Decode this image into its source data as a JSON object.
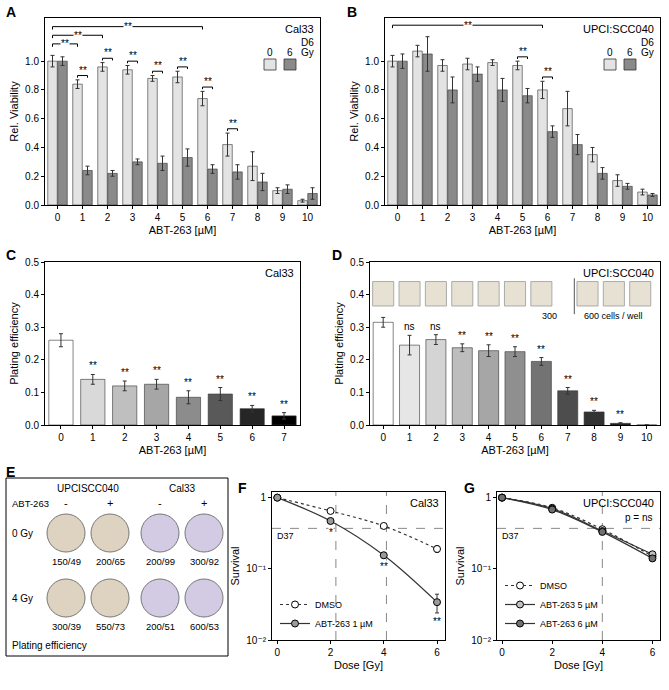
{
  "chart_data": [
    {
      "panel": "A",
      "type": "bar",
      "title": "Cal33",
      "subtitle": "D6",
      "x_label": "ABT-263 [µM]",
      "y_label": "Rel. Viability",
      "categories": [
        "0",
        "1",
        "2",
        "3",
        "4",
        "5",
        "6",
        "7",
        "8",
        "9",
        "10"
      ],
      "series": [
        {
          "name": "0",
          "color": "#e3e3e3",
          "values": [
            1.0,
            0.84,
            0.96,
            0.94,
            0.88,
            0.89,
            0.74,
            0.42,
            0.27,
            0.1,
            0.03
          ],
          "errors": [
            0.04,
            0.03,
            0.03,
            0.03,
            0.02,
            0.04,
            0.05,
            0.08,
            0.1,
            0.02,
            0.01
          ]
        },
        {
          "name": "6",
          "color": "#8a8a8a",
          "values": [
            1.0,
            0.24,
            0.22,
            0.3,
            0.29,
            0.33,
            0.25,
            0.23,
            0.16,
            0.11,
            0.08
          ],
          "errors": [
            0.03,
            0.03,
            0.02,
            0.02,
            0.05,
            0.06,
            0.03,
            0.05,
            0.06,
            0.03,
            0.04
          ]
        }
      ],
      "legend": "top right",
      "legend_title": "Gy",
      "grid": false,
      "ylim": [
        0,
        1.3
      ],
      "yticks": [
        {
          "value": 0,
          "label": "0.0"
        },
        0.2,
        0.4,
        0.6,
        0.8,
        {
          "value": 1,
          "label": "1.0"
        }
      ],
      "brackets": [
        {
          "from": "0",
          "to": "1",
          "label": "**"
        },
        {
          "from": "0",
          "to": "2",
          "label": "**"
        },
        {
          "from": "0",
          "to": "6",
          "label": "**"
        }
      ],
      "pair_marks": [
        {
          "category": "1",
          "label": "**"
        },
        {
          "category": "2",
          "label": "**"
        },
        {
          "category": "3",
          "label": "**"
        },
        {
          "category": "4",
          "label": "**"
        },
        {
          "category": "5",
          "label": "**"
        },
        {
          "category": "6",
          "label": "**"
        },
        {
          "category": "7",
          "label": "**"
        }
      ]
    },
    {
      "panel": "B",
      "type": "bar",
      "title": "UPCI:SCC040",
      "subtitle": "D6",
      "x_label": "ABT-263 [µM]",
      "y_label": "Rel. Viability",
      "categories": [
        "0",
        "1",
        "2",
        "3",
        "4",
        "5",
        "6",
        "7",
        "8",
        "9",
        "10"
      ],
      "series": [
        {
          "name": "0",
          "color": "#e3e3e3",
          "values": [
            1.0,
            1.07,
            0.97,
            0.98,
            0.99,
            0.97,
            0.8,
            0.67,
            0.35,
            0.17,
            0.09
          ],
          "errors": [
            0.04,
            0.04,
            0.04,
            0.04,
            0.02,
            0.03,
            0.06,
            0.12,
            0.05,
            0.04,
            0.02
          ]
        },
        {
          "name": "6",
          "color": "#8a8a8a",
          "values": [
            1.0,
            1.05,
            0.8,
            0.91,
            0.8,
            0.76,
            0.51,
            0.42,
            0.22,
            0.13,
            0.07
          ],
          "errors": [
            0.05,
            0.12,
            0.09,
            0.05,
            0.08,
            0.05,
            0.04,
            0.07,
            0.04,
            0.02,
            0.01
          ]
        }
      ],
      "legend": "top right",
      "legend_title": "Gy",
      "grid": false,
      "ylim": [
        0,
        1.3
      ],
      "yticks": [
        {
          "value": 0,
          "label": "0.0"
        },
        0.2,
        0.4,
        0.6,
        0.8,
        {
          "value": 1,
          "label": "1.0"
        }
      ],
      "brackets": [
        {
          "from": "0",
          "to": "6",
          "label": "**"
        }
      ],
      "pair_marks": [
        {
          "category": "5",
          "label": "**"
        },
        {
          "category": "6",
          "label": "**"
        }
      ]
    },
    {
      "panel": "C",
      "type": "bar",
      "title": "Cal33",
      "x_label": "ABT-263 [µM]",
      "y_label": "Plating efficiency",
      "categories": [
        "0",
        "1",
        "2",
        "3",
        "4",
        "5",
        "6",
        "7"
      ],
      "values": [
        0.26,
        0.14,
        0.12,
        0.125,
        0.085,
        0.095,
        0.05,
        0.028
      ],
      "errors": [
        0.02,
        0.015,
        0.015,
        0.015,
        0.02,
        0.02,
        0.01,
        0.01
      ],
      "colors": [
        "#ffffff",
        "#d9d9d9",
        "#bfbfbf",
        "#a6a6a6",
        "#8c8c8c",
        "#595959",
        "#262626",
        "#000000"
      ],
      "significance": [
        null,
        "**",
        "**",
        "**",
        "**",
        "**",
        "**",
        "**"
      ],
      "grid": false,
      "ylim": [
        0,
        0.5
      ],
      "yticks": [
        {
          "value": 0,
          "label": "0.0"
        },
        0.1,
        0.2,
        0.3,
        0.4,
        0.5
      ]
    },
    {
      "panel": "D",
      "type": "bar",
      "title": "UPCI:SCC040",
      "x_label": "ABT-263 [µM]",
      "y_label": "Plating efficiency",
      "categories": [
        "0",
        "1",
        "2",
        "3",
        "4",
        "5",
        "6",
        "7",
        "8",
        "9",
        "10"
      ],
      "values": [
        0.315,
        0.245,
        0.262,
        0.237,
        0.228,
        0.225,
        0.195,
        0.105,
        0.04,
        0.005,
        0
      ],
      "errors": [
        0.015,
        0.03,
        0.015,
        0.012,
        0.018,
        0.015,
        0.012,
        0.01,
        0.005,
        0.002,
        0
      ],
      "colors": [
        "#ffffff",
        "#e6e6e6",
        "#d4d4d4",
        "#bdbdbd",
        "#a6a6a6",
        "#8f8f8f",
        "#737373",
        "#4d4d4d",
        "#333333",
        "#1a1a1a",
        "#000000"
      ],
      "significance": [
        null,
        "ns",
        "ns",
        "**",
        "**",
        "**",
        "**",
        "**",
        "**",
        "**",
        null
      ],
      "plate_labels": [
        "300",
        "600 cells / well"
      ],
      "grid": false,
      "ylim": [
        0,
        0.5
      ],
      "yticks": [
        {
          "value": 0,
          "label": "0.0"
        },
        0.1,
        0.2,
        0.3,
        0.4,
        0.5
      ]
    },
    {
      "panel": "F",
      "type": "line",
      "title": "Cal33",
      "x_label": "Dose [Gy]",
      "y_label": "Survival",
      "x": [
        0,
        2,
        4,
        6
      ],
      "series": [
        {
          "name": "DMSO",
          "color": "#ffffff",
          "marker": "circle",
          "line_style": "dot",
          "values": [
            1,
            0.65,
            0.4,
            0.19
          ],
          "errors": [
            0,
            0.03,
            0.02,
            0.02
          ]
        },
        {
          "name": "ABT-263 1 µM",
          "color": "#9a9a9a",
          "marker": "circle",
          "line_style": "solid",
          "values": [
            1,
            0.47,
            0.155,
            0.034
          ],
          "errors": [
            0,
            0.04,
            0.015,
            0.01
          ],
          "significance": [
            null,
            "*",
            "**",
            "**"
          ]
        }
      ],
      "log": "y",
      "legend": "bottom left",
      "grid": false,
      "xlim": [
        -0.2,
        6.3
      ],
      "xticks": [
        0,
        2,
        4,
        6
      ],
      "ylim": [
        0.01,
        1.2
      ],
      "yticks": [
        {
          "value": 0.01,
          "label": "10⁻²"
        },
        {
          "value": 0.1,
          "label": "10⁻¹"
        },
        1
      ],
      "d37": {
        "label": "D37",
        "value": 0.37,
        "doses": [
          2.2,
          4.1
        ]
      }
    },
    {
      "panel": "G",
      "type": "line",
      "title": "UPCI:SCC040",
      "x_label": "Dose [Gy]",
      "y_label": "Survival",
      "note": "p = ns",
      "x": [
        0,
        2,
        4,
        6
      ],
      "series": [
        {
          "name": "DMSO",
          "color": "#ffffff",
          "marker": "circle",
          "line_style": "dot",
          "values": [
            1,
            0.72,
            0.36,
            0.15
          ],
          "errors": [
            0,
            0.03,
            0.02,
            0.01
          ]
        },
        {
          "name": "ABT-263 5 µM",
          "color": "#c0c0c0",
          "marker": "circle",
          "line_style": "solid",
          "values": [
            1,
            0.7,
            0.34,
            0.16
          ],
          "errors": [
            0,
            0.03,
            0.02,
            0.015
          ]
        },
        {
          "name": "ABT-263 6 µM",
          "color": "#707070",
          "marker": "circle",
          "line_style": "solid",
          "values": [
            1,
            0.68,
            0.33,
            0.14
          ],
          "errors": [
            0,
            0.03,
            0.02,
            0.01
          ]
        }
      ],
      "log": "y",
      "legend": "bottom left",
      "grid": false,
      "xlim": [
        -0.2,
        6.3
      ],
      "xticks": [
        0,
        2,
        4,
        6
      ],
      "ylim": [
        0.01,
        1.2
      ],
      "yticks": [
        {
          "value": 0.01,
          "label": "10⁻²"
        },
        {
          "value": 0.1,
          "label": "10⁻¹"
        },
        1
      ],
      "d37": {
        "label": "D37",
        "value": 0.37,
        "doses": [
          4.0
        ]
      }
    }
  ],
  "panel_e": {
    "panel": "E",
    "row_header": "ABT-263",
    "groups": [
      "UPCISCC040",
      "Cal33"
    ],
    "treatments": [
      "-",
      "+",
      "-",
      "+"
    ],
    "rows": [
      {
        "label": "0 Gy",
        "counts": [
          "150/49",
          "200/65",
          "200/99",
          "300/92"
        ]
      },
      {
        "label": "4 Gy",
        "counts": [
          "300/39",
          "550/73",
          "200/51",
          "600/53"
        ]
      }
    ],
    "footer": "Plating efficiency"
  }
}
